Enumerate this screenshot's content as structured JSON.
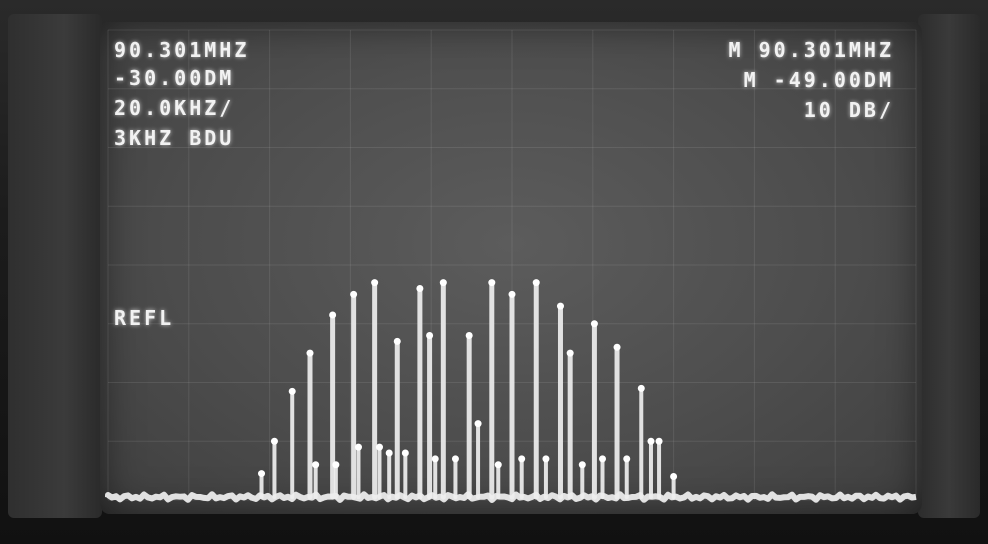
{
  "display": {
    "left_readouts": [
      "90.301MHZ",
      "-30.00DM",
      "20.0KHZ/",
      "3KHZ BDU"
    ],
    "right_readouts": [
      "M 90.301MHZ",
      "M -49.00DM",
      "10 DB/"
    ],
    "side_label": "REFL"
  },
  "chart_data": {
    "type": "line",
    "title": "",
    "xlabel": "",
    "ylabel": "",
    "grid": true,
    "xlim": [
      0,
      10
    ],
    "ylim": [
      0,
      8
    ],
    "noise_floor": 0.05,
    "series": [
      {
        "values": [
          [
            1.9,
            0.45
          ],
          [
            2.06,
            1.0
          ],
          [
            2.28,
            1.85
          ],
          [
            2.5,
            2.5
          ],
          [
            2.57,
            0.6
          ],
          [
            2.78,
            3.15
          ],
          [
            2.82,
            0.6
          ],
          [
            3.04,
            3.5
          ],
          [
            3.1,
            0.9
          ],
          [
            3.3,
            3.7
          ],
          [
            3.36,
            0.9
          ],
          [
            3.48,
            0.8
          ],
          [
            3.58,
            2.7
          ],
          [
            3.68,
            0.8
          ],
          [
            3.86,
            3.6
          ],
          [
            3.98,
            2.8
          ],
          [
            4.05,
            0.7
          ],
          [
            4.15,
            3.7
          ],
          [
            4.3,
            0.7
          ],
          [
            4.47,
            2.8
          ],
          [
            4.58,
            1.3
          ],
          [
            4.75,
            3.7
          ],
          [
            4.83,
            0.6
          ],
          [
            5.0,
            3.5
          ],
          [
            5.12,
            0.7
          ],
          [
            5.3,
            3.7
          ],
          [
            5.42,
            0.7
          ],
          [
            5.6,
            3.3
          ],
          [
            5.72,
            2.5
          ],
          [
            5.87,
            0.6
          ],
          [
            6.02,
            3.0
          ],
          [
            6.12,
            0.7
          ],
          [
            6.3,
            2.6
          ],
          [
            6.42,
            0.7
          ],
          [
            6.6,
            1.9
          ],
          [
            6.72,
            1.0
          ],
          [
            6.82,
            1.0
          ],
          [
            7.0,
            0.4
          ]
        ]
      }
    ]
  }
}
